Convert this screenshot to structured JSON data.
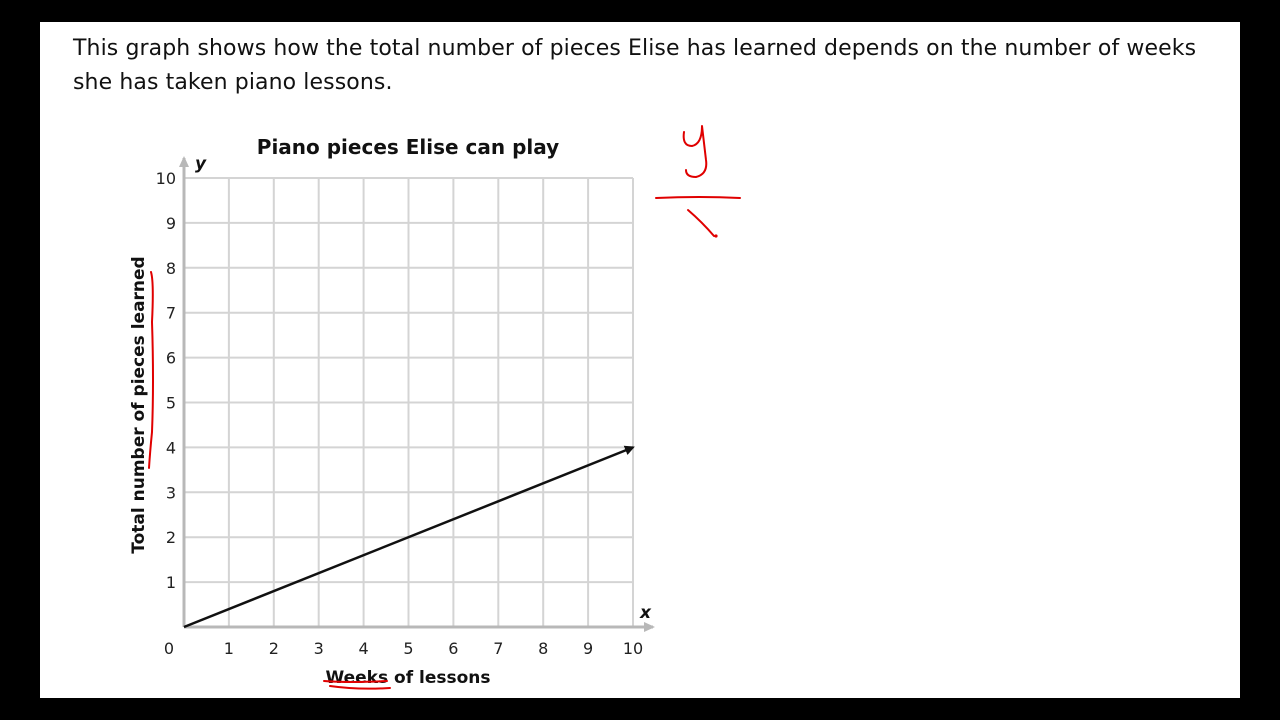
{
  "question": {
    "text": "This graph shows how the total number of pieces Elise has learned depends on the number of weeks she has taken piano lessons."
  },
  "chart_data": {
    "type": "line",
    "title": "Piano pieces Elise can play",
    "xlabel": "Weeks of lessons",
    "ylabel": "Total number of pieces learned",
    "x_axis_letter": "x",
    "y_axis_letter": "y",
    "xlim": [
      0,
      10
    ],
    "ylim": [
      0,
      10
    ],
    "x_ticks": [
      0,
      1,
      2,
      3,
      4,
      5,
      6,
      7,
      8,
      9,
      10
    ],
    "y_ticks": [
      1,
      2,
      3,
      4,
      5,
      6,
      7,
      8,
      9,
      10
    ],
    "grid": true,
    "series": [
      {
        "x": [
          0,
          10
        ],
        "y": [
          0,
          4
        ],
        "arrow_end": true
      }
    ]
  },
  "colors": {
    "frame": "#000000",
    "page": "#ffffff",
    "grid": "#d4d4d4",
    "axis": "#b8b8b8",
    "line": "#111111",
    "annotation_ink": "#e00000"
  }
}
